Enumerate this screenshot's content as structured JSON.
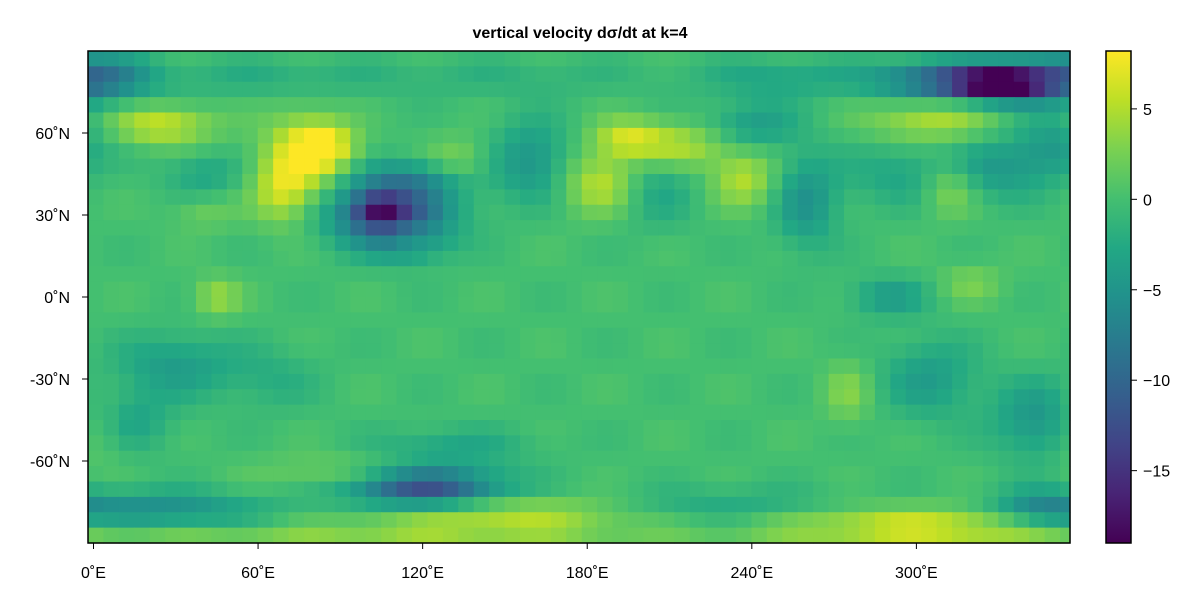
{
  "chart_data": {
    "type": "heatmap",
    "title": "vertical velocity dσ/dt at k=4",
    "xlabel": "",
    "ylabel": "",
    "x_ticks": [
      {
        "value": 0,
        "label": "0˚E"
      },
      {
        "value": 60,
        "label": "60˚E"
      },
      {
        "value": 120,
        "label": "120˚E"
      },
      {
        "value": 180,
        "label": "180˚E"
      },
      {
        "value": 240,
        "label": "240˚E"
      },
      {
        "value": 300,
        "label": "300˚E"
      }
    ],
    "y_ticks": [
      {
        "value": 60,
        "label": "60˚N"
      },
      {
        "value": 30,
        "label": "30˚N"
      },
      {
        "value": 0,
        "label": "0˚N"
      },
      {
        "value": -30,
        "label": "-30˚N"
      },
      {
        "value": -60,
        "label": "-60˚N"
      }
    ],
    "xlim": [
      -2,
      356
    ],
    "ylim": [
      -90,
      90
    ],
    "grid_resolution": {
      "lon_cells": 64,
      "lat_cells": 32
    },
    "colormap": "viridis",
    "colorbar": {
      "range": [
        -19,
        8.2
      ],
      "ticks": [
        {
          "value": 5,
          "label": "5"
        },
        {
          "value": 0,
          "label": "0"
        },
        {
          "value": -5,
          "label": "−5"
        },
        {
          "value": -10,
          "label": "−10"
        },
        {
          "value": -15,
          "label": "−15"
        }
      ]
    },
    "background_value": 0,
    "features": [
      {
        "lon": 5,
        "lat": 80,
        "w": 12,
        "h": 6,
        "value": -7
      },
      {
        "lon": 345,
        "lat": 80,
        "w": 12,
        "h": 6,
        "value": -7
      },
      {
        "lon": 60,
        "lat": 80,
        "w": 30,
        "h": 5,
        "value": -2
      },
      {
        "lon": 150,
        "lat": 80,
        "w": 40,
        "h": 5,
        "value": -1.5
      },
      {
        "lon": 250,
        "lat": 80,
        "w": 20,
        "h": 5,
        "value": -3
      },
      {
        "lon": 310,
        "lat": 79,
        "w": 18,
        "h": 5,
        "value": -10
      },
      {
        "lon": 330,
        "lat": 78,
        "w": 12,
        "h": 4,
        "value": -17
      },
      {
        "lon": 25,
        "lat": 63,
        "w": 13,
        "h": 5,
        "value": 6
      },
      {
        "lon": 75,
        "lat": 50,
        "w": 10,
        "h": 12,
        "value": 6.5
      },
      {
        "lon": 85,
        "lat": 55,
        "w": 8,
        "h": 6,
        "value": 7
      },
      {
        "lon": 68,
        "lat": 38,
        "w": 7,
        "h": 8,
        "value": 4
      },
      {
        "lon": 108,
        "lat": 30,
        "w": 15,
        "h": 8,
        "value": -13
      },
      {
        "lon": 104,
        "lat": 32,
        "w": 6,
        "h": 4,
        "value": -7
      },
      {
        "lon": 115,
        "lat": 43,
        "w": 15,
        "h": 5,
        "value": -5
      },
      {
        "lon": 115,
        "lat": 18,
        "w": 10,
        "h": 4,
        "value": -3
      },
      {
        "lon": 115,
        "lat": 22,
        "w": 6,
        "h": 3,
        "value": 3
      },
      {
        "lon": 40,
        "lat": 45,
        "w": 10,
        "h": 5,
        "value": -3
      },
      {
        "lon": 40,
        "lat": 30,
        "w": 8,
        "h": 4,
        "value": 2
      },
      {
        "lon": 160,
        "lat": 50,
        "w": 10,
        "h": 10,
        "value": -5
      },
      {
        "lon": 133,
        "lat": 50,
        "w": 8,
        "h": 6,
        "value": 3
      },
      {
        "lon": 185,
        "lat": 42,
        "w": 10,
        "h": 8,
        "value": 5.5
      },
      {
        "lon": 195,
        "lat": 58,
        "w": 9,
        "h": 5,
        "value": 6
      },
      {
        "lon": 215,
        "lat": 55,
        "w": 12,
        "h": 6,
        "value": 5
      },
      {
        "lon": 237,
        "lat": 43,
        "w": 8,
        "h": 7,
        "value": 5
      },
      {
        "lon": 205,
        "lat": 40,
        "w": 10,
        "h": 10,
        "value": -3
      },
      {
        "lon": 240,
        "lat": 63,
        "w": 12,
        "h": 6,
        "value": -4
      },
      {
        "lon": 260,
        "lat": 35,
        "w": 8,
        "h": 12,
        "value": -5
      },
      {
        "lon": 305,
        "lat": 65,
        "w": 16,
        "h": 6,
        "value": 5
      },
      {
        "lon": 330,
        "lat": 47,
        "w": 12,
        "h": 8,
        "value": -4
      },
      {
        "lon": 295,
        "lat": 45,
        "w": 15,
        "h": 8,
        "value": -3
      },
      {
        "lon": 312,
        "lat": 40,
        "w": 7,
        "h": 7,
        "value": 4
      },
      {
        "lon": 350,
        "lat": 55,
        "w": 10,
        "h": 8,
        "value": -4
      },
      {
        "lon": 45,
        "lat": 0,
        "w": 6,
        "h": 5,
        "value": 4
      },
      {
        "lon": 30,
        "lat": -25,
        "w": 15,
        "h": 8,
        "value": -4
      },
      {
        "lon": 15,
        "lat": -45,
        "w": 10,
        "h": 8,
        "value": -3
      },
      {
        "lon": 0,
        "lat": -48,
        "w": 8,
        "h": 10,
        "value": 3
      },
      {
        "lon": 65,
        "lat": -30,
        "w": 12,
        "h": 8,
        "value": -2
      },
      {
        "lon": 290,
        "lat": 0,
        "w": 10,
        "h": 5,
        "value": -4
      },
      {
        "lon": 305,
        "lat": -30,
        "w": 12,
        "h": 10,
        "value": -4
      },
      {
        "lon": 275,
        "lat": -35,
        "w": 6,
        "h": 8,
        "value": 3
      },
      {
        "lon": 345,
        "lat": -45,
        "w": 12,
        "h": 10,
        "value": -5
      },
      {
        "lon": 320,
        "lat": 5,
        "w": 8,
        "h": 5,
        "value": 2.5
      },
      {
        "lon": 130,
        "lat": -55,
        "w": 20,
        "h": 5,
        "value": -3
      },
      {
        "lon": 90,
        "lat": -65,
        "w": 20,
        "h": 5,
        "value": 3
      },
      {
        "lon": 120,
        "lat": -70,
        "w": 20,
        "h": 5,
        "value": -13
      },
      {
        "lon": 20,
        "lat": -78,
        "w": 30,
        "h": 5,
        "value": -6
      },
      {
        "lon": 230,
        "lat": -77,
        "w": 30,
        "h": 5,
        "value": -3
      },
      {
        "lon": 345,
        "lat": -78,
        "w": 12,
        "h": 5,
        "value": -5
      },
      {
        "lon": 150,
        "lat": -80,
        "w": 35,
        "h": 5,
        "value": 5
      },
      {
        "lon": 300,
        "lat": -84,
        "w": 40,
        "h": 5,
        "value": 6.5
      },
      {
        "lon": 90,
        "lat": -88,
        "w": 80,
        "h": 4,
        "value": 3
      }
    ]
  }
}
